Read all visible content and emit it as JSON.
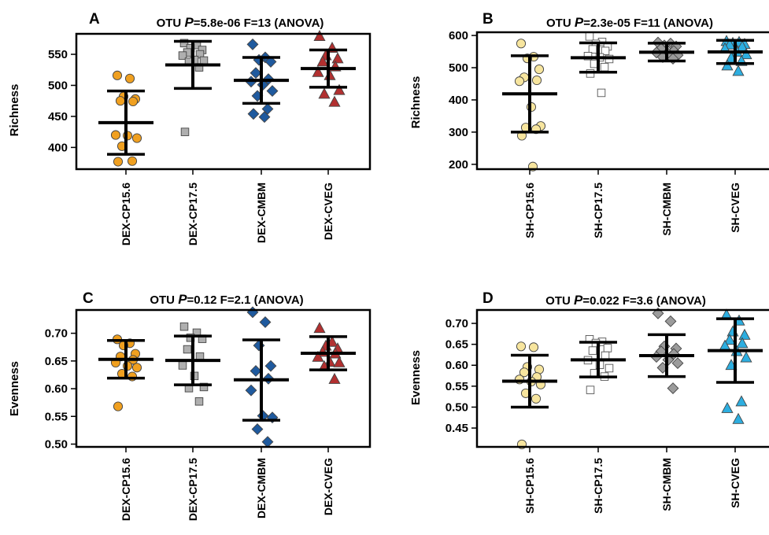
{
  "figure": {
    "panel_count": 4
  },
  "chart_data": [
    {
      "panel": "A",
      "type": "scatter",
      "title_prefix": "OTU ",
      "title_p": "P",
      "title_rest": "=5.8e-06 F=13 (ANOVA)",
      "ylabel": "Richness",
      "ylim": [
        365,
        583
      ],
      "yticks": [
        400,
        450,
        500,
        550
      ],
      "categories": [
        "DEX-CP15.6",
        "DEX-CP17.5",
        "DEX-CMBM",
        "DEX-CVEG"
      ],
      "series": [
        {
          "category": "DEX-CP15.6",
          "marker": "circle",
          "fill": "#F0A020",
          "mean": 440,
          "sd_low": 389,
          "sd_high": 491,
          "values": [
            516,
            511,
            482,
            478,
            475,
            474,
            420,
            419,
            415,
            402,
            378,
            377
          ]
        },
        {
          "category": "DEX-CP17.5",
          "marker": "square",
          "fill": "#AFAFAF",
          "mean": 533,
          "sd_low": 495,
          "sd_high": 571,
          "values": [
            568,
            565,
            560,
            557,
            553,
            550,
            548,
            541,
            540,
            538,
            529,
            425
          ]
        },
        {
          "category": "DEX-CMBM",
          "marker": "diamond",
          "fill": "#1F5A9E",
          "mean": 508,
          "sd_low": 471,
          "sd_high": 545,
          "values": [
            566,
            545,
            541,
            538,
            520,
            510,
            506,
            501,
            491,
            483,
            462,
            454,
            449
          ]
        },
        {
          "category": "DEX-CVEG",
          "marker": "triangle",
          "fill": "#B23030",
          "mean": 527,
          "sd_low": 497,
          "sd_high": 557,
          "values": [
            579,
            560,
            548,
            543,
            538,
            530,
            521,
            516,
            492,
            486,
            473
          ]
        }
      ]
    },
    {
      "panel": "B",
      "type": "scatter",
      "title_prefix": "OTU ",
      "title_p": "P",
      "title_rest": "=2.3e-05 F=11 (ANOVA)",
      "ylabel": "Richness",
      "ylim": [
        185,
        610
      ],
      "yticks": [
        200,
        300,
        400,
        500,
        600
      ],
      "categories": [
        "SH-CP15.6",
        "SH-CP17.5",
        "SH-CMBM",
        "SH-CVEG"
      ],
      "series": [
        {
          "category": "SH-CP15.6",
          "marker": "circle",
          "fill": "#F7E59E",
          "mean": 419,
          "sd_low": 300,
          "sd_high": 537,
          "values": [
            575,
            534,
            529,
            495,
            470,
            461,
            458,
            378,
            319,
            314,
            309,
            289,
            193
          ]
        },
        {
          "category": "SH-CP17.5",
          "marker": "square",
          "fill": "#FFFFFF",
          "mean": 531,
          "sd_low": 486,
          "sd_high": 577,
          "values": [
            597,
            580,
            574,
            566,
            557,
            552,
            536,
            532,
            527,
            512,
            502,
            482,
            422
          ]
        },
        {
          "category": "SH-CMBM",
          "marker": "diamond",
          "fill": "#9B9B9B",
          "mean": 548,
          "sd_low": 521,
          "sd_high": 576,
          "values": [
            578,
            575,
            569,
            566,
            559,
            552,
            547,
            543,
            539,
            533,
            528
          ]
        },
        {
          "category": "SH-CVEG",
          "marker": "triangle",
          "fill": "#2DAEE0",
          "mean": 549,
          "sd_low": 513,
          "sd_high": 585,
          "values": [
            582,
            579,
            576,
            573,
            571,
            565,
            559,
            549,
            541,
            530,
            520,
            506,
            489
          ]
        }
      ]
    },
    {
      "panel": "C",
      "type": "scatter",
      "title_prefix": "OTU ",
      "title_p": "P",
      "title_rest": "=0.12 F=2.1 (ANOVA)",
      "ylabel": "Evenness",
      "ylim": [
        0.495,
        0.742
      ],
      "yticks": [
        0.5,
        0.55,
        0.6,
        0.65,
        0.7
      ],
      "tick_decimals": 2,
      "categories": [
        "DEX-CP15.6",
        "DEX-CP17.5",
        "DEX-CMBM",
        "DEX-CVEG"
      ],
      "series": [
        {
          "category": "DEX-CP15.6",
          "marker": "circle",
          "fill": "#F0A020",
          "mean": 0.653,
          "sd_low": 0.619,
          "sd_high": 0.687,
          "values": [
            0.689,
            0.682,
            0.678,
            0.663,
            0.658,
            0.652,
            0.647,
            0.641,
            0.638,
            0.627,
            0.622,
            0.568
          ]
        },
        {
          "category": "DEX-CP17.5",
          "marker": "square",
          "fill": "#AFAFAF",
          "mean": 0.651,
          "sd_low": 0.607,
          "sd_high": 0.695,
          "values": [
            0.712,
            0.701,
            0.692,
            0.69,
            0.671,
            0.658,
            0.642,
            0.623,
            0.603,
            0.601,
            0.577
          ]
        },
        {
          "category": "DEX-CMBM",
          "marker": "diamond",
          "fill": "#1F5A9E",
          "mean": 0.616,
          "sd_low": 0.543,
          "sd_high": 0.688,
          "values": [
            0.738,
            0.72,
            0.678,
            0.641,
            0.632,
            0.618,
            0.597,
            0.551,
            0.548,
            0.527,
            0.504
          ]
        },
        {
          "category": "DEX-CVEG",
          "marker": "triangle",
          "fill": "#B23030",
          "mean": 0.664,
          "sd_low": 0.634,
          "sd_high": 0.694,
          "values": [
            0.709,
            0.684,
            0.677,
            0.672,
            0.666,
            0.663,
            0.657,
            0.648,
            0.647,
            0.64,
            0.617
          ]
        }
      ]
    },
    {
      "panel": "D",
      "type": "scatter",
      "title_prefix": "OTU ",
      "title_p": "P",
      "title_rest": "=0.022 F=3.6 (ANOVA)",
      "ylabel": "Evenness",
      "ylim": [
        0.405,
        0.732
      ],
      "yticks": [
        0.45,
        0.5,
        0.55,
        0.6,
        0.65,
        0.7
      ],
      "tick_decimals": 2,
      "categories": [
        "SH-CP15.6",
        "SH-CP17.5",
        "SH-CMBM",
        "SH-CVEG"
      ],
      "series": [
        {
          "category": "SH-CP15.6",
          "marker": "circle",
          "fill": "#F7E59E",
          "mean": 0.562,
          "sd_low": 0.5,
          "sd_high": 0.624,
          "values": [
            0.645,
            0.643,
            0.596,
            0.59,
            0.583,
            0.572,
            0.566,
            0.561,
            0.554,
            0.533,
            0.52,
            0.411
          ]
        },
        {
          "category": "SH-CP17.5",
          "marker": "square",
          "fill": "#FFFFFF",
          "mean": 0.613,
          "sd_low": 0.572,
          "sd_high": 0.655,
          "values": [
            0.662,
            0.656,
            0.653,
            0.641,
            0.635,
            0.623,
            0.612,
            0.601,
            0.593,
            0.581,
            0.573,
            0.541
          ]
        },
        {
          "category": "SH-CMBM",
          "marker": "diamond",
          "fill": "#9B9B9B",
          "mean": 0.623,
          "sd_low": 0.573,
          "sd_high": 0.673,
          "values": [
            0.724,
            0.705,
            0.645,
            0.64,
            0.633,
            0.627,
            0.62,
            0.613,
            0.605,
            0.594,
            0.545
          ]
        },
        {
          "category": "SH-CVEG",
          "marker": "triangle",
          "fill": "#2DAEE0",
          "mean": 0.635,
          "sd_low": 0.559,
          "sd_high": 0.711,
          "values": [
            0.72,
            0.706,
            0.68,
            0.672,
            0.66,
            0.652,
            0.646,
            0.633,
            0.618,
            0.6,
            0.513,
            0.497,
            0.471
          ]
        }
      ]
    }
  ]
}
